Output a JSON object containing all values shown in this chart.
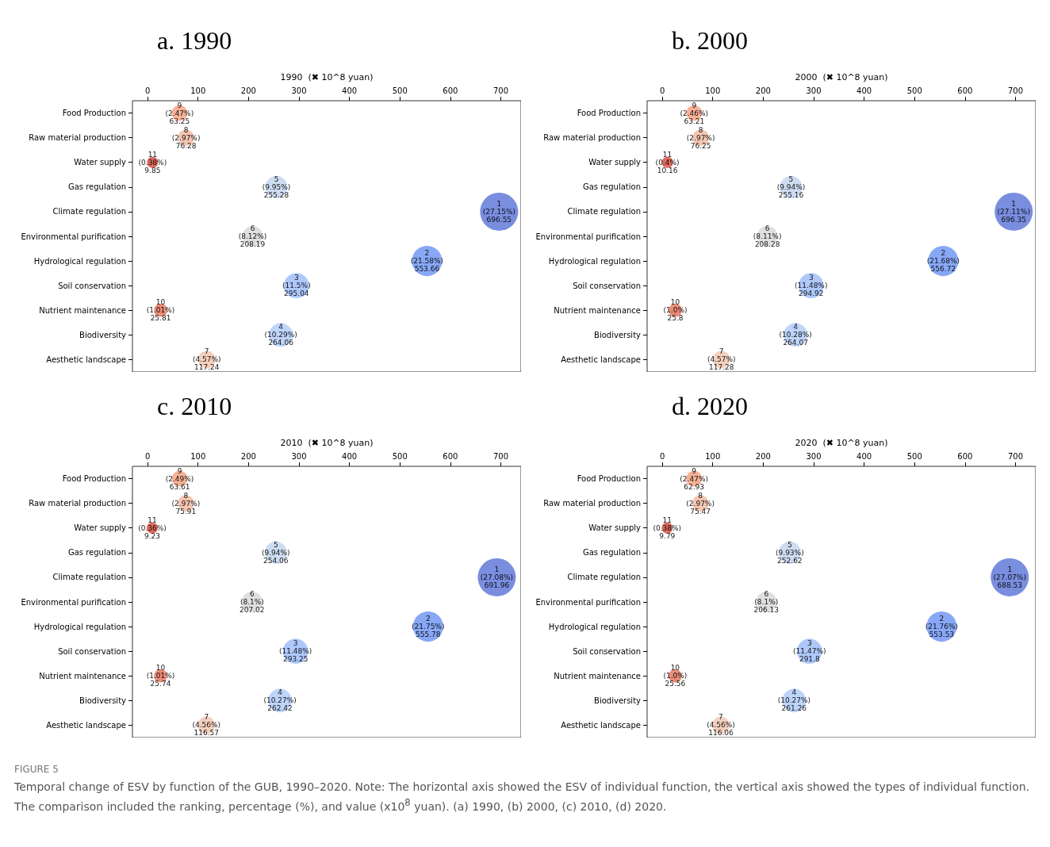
{
  "chart_data": [
    {
      "type": "bubble",
      "orientation": "horizontal",
      "title": "a. 1990",
      "xlabel": "1990  (✖ 10^8 yuan)",
      "xlim": [
        -30,
        740
      ],
      "xticks": [
        0,
        100,
        200,
        300,
        400,
        500,
        600,
        700
      ],
      "grid": false,
      "categories": [
        "Food Production",
        "Raw material production",
        "Water supply",
        "Gas regulation",
        "Climate regulation",
        "Environmental purification",
        "Hydrological regulation",
        "Soil conservation",
        "Nutrient maintenance",
        "Biodiversity",
        "Aesthetic landscape"
      ],
      "values": [
        63.25,
        76.28,
        9.85,
        255.28,
        696.55,
        208.19,
        553.66,
        295.04,
        25.81,
        264.06,
        117.24
      ],
      "sizes": [
        0.17,
        0.18,
        0.085,
        0.34,
        1,
        0.29,
        0.63,
        0.44,
        0.12,
        0.39,
        0.21
      ],
      "colors": [
        "#f5a98c",
        "#f3bfa8",
        "#dc5a4e",
        "#c9d8f0",
        "#6b82dc",
        "#dcdcdc",
        "#7b9ff5",
        "#a6c2fb",
        "#e8806a",
        "#b8cff8",
        "#f2cbb7"
      ],
      "value_labels": [
        "9\n(2.47%)\n63.25",
        "8\n(2.97%)\n76.28",
        "11\n(0.38%)\n9.85",
        "5\n(9.95%)\n255.28",
        "1\n(27.15%)\n696.55",
        "6\n(8.12%)\n208.19",
        "2\n(21.58%)\n553.66",
        "3\n(11.5%)\n295.04",
        "10\n(1.01%)\n25.81",
        "4\n(10.29%)\n264.06",
        "7\n(4.57%)\n117.24"
      ]
    },
    {
      "type": "bubble",
      "orientation": "horizontal",
      "title": "b. 2000",
      "xlabel": "2000  (✖ 10^8 yuan)",
      "xlim": [
        -30,
        740
      ],
      "xticks": [
        0,
        100,
        200,
        300,
        400,
        500,
        600,
        700
      ],
      "grid": false,
      "categories": [
        "Food Production",
        "Raw material production",
        "Water supply",
        "Gas regulation",
        "Climate regulation",
        "Environmental purification",
        "Hydrological regulation",
        "Soil conservation",
        "Nutrient maintenance",
        "Biodiversity",
        "Aesthetic landscape"
      ],
      "values": [
        63.21,
        76.25,
        10.16,
        255.16,
        696.35,
        208.28,
        556.72,
        294.92,
        25.8,
        264.07,
        117.28
      ],
      "sizes": [
        0.17,
        0.18,
        0.085,
        0.34,
        1,
        0.29,
        0.63,
        0.44,
        0.12,
        0.39,
        0.21
      ],
      "colors": [
        "#f5a98c",
        "#f3bfa8",
        "#dc5a4e",
        "#c9d8f0",
        "#6b82dc",
        "#dcdcdc",
        "#7b9ff5",
        "#a6c2fb",
        "#e8806a",
        "#b8cff8",
        "#f2cbb7"
      ],
      "value_labels": [
        "9\n(2.46%)\n63.21",
        "8\n(2.97%)\n76.25",
        "11\n(0.4%)\n10.16",
        "5\n(9.94%)\n255.16",
        "1\n(27.11%)\n696.35",
        "6\n(8.11%)\n208.28",
        "2\n(21.68%)\n556.72",
        "3\n(11.48%)\n294.92",
        "10\n(1.0%)\n25.8",
        "4\n(10.28%)\n264.07",
        "7\n(4.57%)\n117.28"
      ]
    },
    {
      "type": "bubble",
      "orientation": "horizontal",
      "title": "c. 2010",
      "xlabel": "2010  (✖ 10^8 yuan)",
      "xlim": [
        -30,
        740
      ],
      "xticks": [
        0,
        100,
        200,
        300,
        400,
        500,
        600,
        700
      ],
      "grid": false,
      "categories": [
        "Food Production",
        "Raw material production",
        "Water supply",
        "Gas regulation",
        "Climate regulation",
        "Environmental purification",
        "Hydrological regulation",
        "Soil conservation",
        "Nutrient maintenance",
        "Biodiversity",
        "Aesthetic landscape"
      ],
      "values": [
        63.61,
        75.91,
        9.23,
        254.06,
        691.96,
        207.02,
        555.78,
        293.25,
        25.74,
        262.42,
        116.57
      ],
      "sizes": [
        0.17,
        0.18,
        0.085,
        0.34,
        1,
        0.29,
        0.63,
        0.44,
        0.12,
        0.39,
        0.21
      ],
      "colors": [
        "#f5a98c",
        "#f3bfa8",
        "#dc5a4e",
        "#c9d8f0",
        "#6b82dc",
        "#dcdcdc",
        "#7b9ff5",
        "#a6c2fb",
        "#e8806a",
        "#b8cff8",
        "#f2cbb7"
      ],
      "value_labels": [
        "9\n(2.49%)\n63.61",
        "8\n(2.97%)\n75.91",
        "11\n(0.36%)\n9.23",
        "5\n(9.94%)\n254.06",
        "1\n(27.08%)\n691.96",
        "6\n(8.1%)\n207.02",
        "2\n(21.75%)\n555.78",
        "3\n(11.48%)\n293.25",
        "10\n(1.01%)\n25.74",
        "4\n(10.27%)\n262.42",
        "7\n(4.56%)\n116.57"
      ]
    },
    {
      "type": "bubble",
      "orientation": "horizontal",
      "title": "d. 2020",
      "xlabel": "2020  (✖ 10^8 yuan)",
      "xlim": [
        -30,
        740
      ],
      "xticks": [
        0,
        100,
        200,
        300,
        400,
        500,
        600,
        700
      ],
      "grid": false,
      "categories": [
        "Food Production",
        "Raw material production",
        "Water supply",
        "Gas regulation",
        "Climate regulation",
        "Environmental purification",
        "Hydrological regulation",
        "Soil conservation",
        "Nutrient maintenance",
        "Biodiversity",
        "Aesthetic landscape"
      ],
      "values": [
        62.93,
        75.47,
        9.79,
        252.62,
        688.53,
        206.13,
        553.53,
        291.8,
        25.56,
        261.26,
        116.06
      ],
      "sizes": [
        0.17,
        0.18,
        0.085,
        0.34,
        1,
        0.29,
        0.63,
        0.44,
        0.12,
        0.39,
        0.21
      ],
      "colors": [
        "#f5a98c",
        "#f3bfa8",
        "#dc5a4e",
        "#c9d8f0",
        "#6b82dc",
        "#dcdcdc",
        "#7b9ff5",
        "#a6c2fb",
        "#e8806a",
        "#b8cff8",
        "#f2cbb7"
      ],
      "value_labels": [
        "9\n(2.47%)\n62.93",
        "8\n(2.97%)\n75.47",
        "11\n(0.38%)\n9.79",
        "5\n(9.93%)\n252.62",
        "1\n(27.07%)\n688.53",
        "6\n(8.1%)\n206.13",
        "2\n(21.76%)\n553.53",
        "3\n(11.47%)\n291.8",
        "10\n(1.0%)\n25.56",
        "4\n(10.27%)\n261.26",
        "7\n(4.56%)\n116.06"
      ],
      "annotations": [
        "FIGURE 5",
        "Temporal change of ESV by function of the GUB, 1990–2020. Note: The horizontal axis showed the ESV of individual function, the vertical axis showed the types of individual function. The comparison included the ranking, percentage (%), and value (x10$^{8}$ yuan). (a) 1990, (b) 2000, (c) 2010, (d) 2020."
      ]
    }
  ]
}
